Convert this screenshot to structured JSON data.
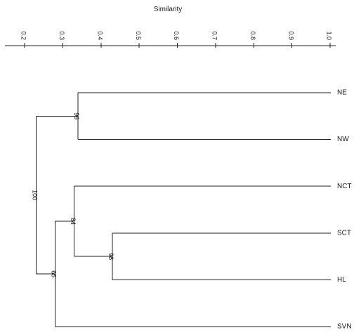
{
  "chart_data": {
    "type": "dendrogram",
    "axis_title": "Similarity",
    "scale_range": [
      0.2,
      1.0
    ],
    "ticks": [
      {
        "value": 0.2,
        "label": "0.2"
      },
      {
        "value": 0.3,
        "label": "0.3"
      },
      {
        "value": 0.4,
        "label": "0.4"
      },
      {
        "value": 0.5,
        "label": "0.5"
      },
      {
        "value": 0.6,
        "label": "0.6"
      },
      {
        "value": 0.7,
        "label": "0.7"
      },
      {
        "value": 0.8,
        "label": "0.8"
      },
      {
        "value": 0.9,
        "label": "0.9"
      },
      {
        "value": 1.0,
        "label": "1.0"
      }
    ],
    "leaves": [
      "NE",
      "NW",
      "NCT",
      "SCT",
      "HL",
      "SVN"
    ],
    "clusters": [
      {
        "id": "c1",
        "members": [
          "NE",
          "NW"
        ],
        "similarity": 0.34,
        "support": "99"
      },
      {
        "id": "c2",
        "members": [
          "SCT",
          "HL"
        ],
        "similarity": 0.43,
        "support": "98"
      },
      {
        "id": "c3",
        "members": [
          "NCT",
          "c2"
        ],
        "similarity": 0.33,
        "support": "84"
      },
      {
        "id": "c4",
        "members": [
          "c3",
          "SVN"
        ],
        "similarity": 0.28,
        "support": "65"
      },
      {
        "id": "c5",
        "members": [
          "c1",
          "c4"
        ],
        "similarity": 0.23,
        "support": "100"
      }
    ]
  }
}
